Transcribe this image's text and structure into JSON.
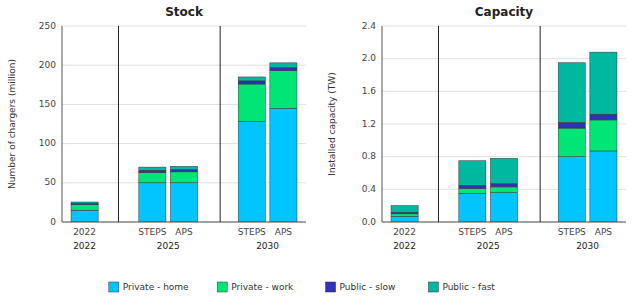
{
  "chart_data": [
    {
      "type": "bar",
      "stacked": true,
      "title": "Stock",
      "y_label": "Number of chargers (million)",
      "categories": [
        "2022",
        "STEPS",
        "APS",
        "STEPS",
        "APS"
      ],
      "annotations": [
        "2022",
        "2025",
        "2030"
      ],
      "series": [
        {
          "name": "Private - home",
          "color": "#00C5FF",
          "values": [
            15,
            50,
            50,
            128,
            145
          ]
        },
        {
          "name": "Private - work",
          "color": "#00E676",
          "values": [
            7,
            13,
            14,
            48,
            48
          ]
        },
        {
          "name": "Public - slow",
          "color": "#3030BB",
          "values": [
            1.5,
            3,
            3,
            4,
            4
          ]
        },
        {
          "name": "Public - fast",
          "color": "#00B8A0",
          "values": [
            2,
            4,
            4,
            5,
            6
          ]
        }
      ],
      "ylim": [
        0,
        250
      ],
      "yticks": [
        0,
        50,
        100,
        150,
        200,
        250
      ],
      "grid": true,
      "legend": "bottom"
    },
    {
      "type": "bar",
      "stacked": true,
      "title": "Capacity",
      "y_label": "Installed capacity (TW)",
      "categories": [
        "2022",
        "STEPS",
        "APS",
        "STEPS",
        "APS"
      ],
      "annotations": [
        "2022",
        "2025",
        "2030"
      ],
      "series": [
        {
          "color": "#00C5FF",
          "values": [
            0.07,
            0.35,
            0.36,
            0.8,
            0.87
          ]
        },
        {
          "color": "#00E676",
          "values": [
            0.03,
            0.06,
            0.07,
            0.35,
            0.38
          ]
        },
        {
          "color": "#3030BB",
          "values": [
            0.02,
            0.04,
            0.04,
            0.07,
            0.07
          ]
        },
        {
          "color": "#00B8A0",
          "values": [
            0.08,
            0.3,
            0.31,
            0.73,
            0.76
          ]
        }
      ],
      "ylim": [
        0,
        2.4
      ],
      "yticks": [
        {
          "value": 0,
          "label": "0.0"
        },
        0.4,
        0.8,
        1.2,
        1.6,
        {
          "value": 2,
          "label": "2.0"
        },
        2.4
      ],
      "grid": true
    }
  ]
}
